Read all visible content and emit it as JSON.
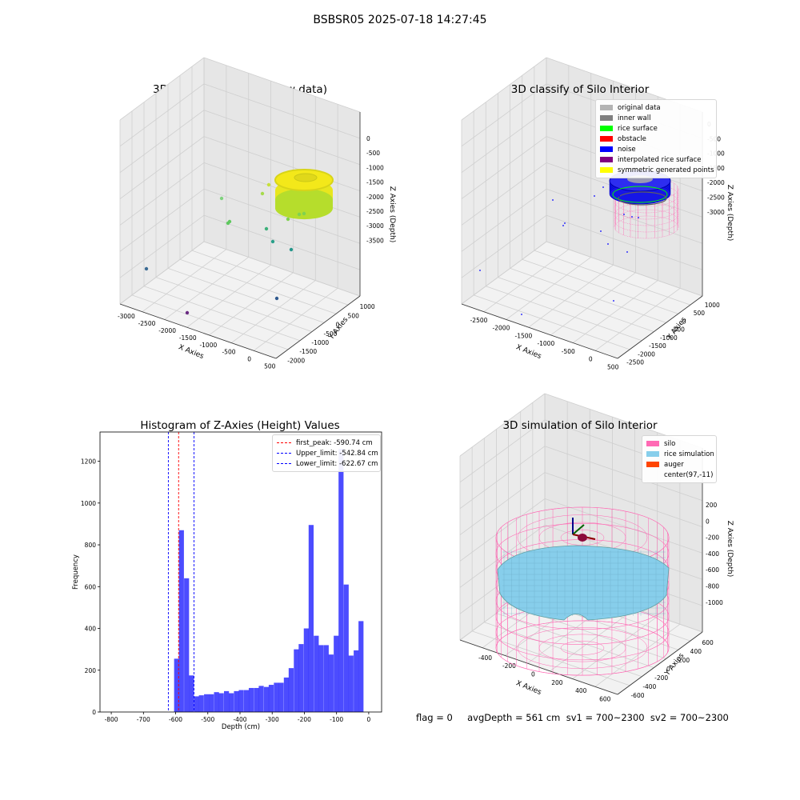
{
  "suptitle": "BSBSR05 2025-07-18 14:27:45",
  "bottom_text": "flag = 0     avgDepth = 561 cm  sv1 = 700~2300  sv2 = 700~2300",
  "chart_data": [
    {
      "type": "scatter3d",
      "title": "3D Plot of Silo Interior(row data)",
      "xlabel": "X Axies",
      "ylabel": "Y Axies",
      "zlabel": "Z Axies (Depth)",
      "xticks": [
        "-3000",
        "-2500",
        "-2000",
        "-1500",
        "-1000",
        "-500",
        "0",
        "500"
      ],
      "yticks": [
        "1000",
        "500",
        "0",
        "-500",
        "-1000",
        "-1500",
        "-2000"
      ],
      "zticks": [
        "0",
        "-500",
        "-1000",
        "-1500",
        "-2000",
        "-2500",
        "-3000",
        "-3500"
      ],
      "grid": true
    },
    {
      "type": "scatter3d",
      "title": "3D classify of Silo Interior",
      "xlabel": "X Axies",
      "ylabel": "Y Axies",
      "zlabel": "Z Axies (Depth)",
      "xticks": [
        "-2500",
        "-2000",
        "-1500",
        "-1000",
        "-500",
        "0",
        "500"
      ],
      "yticks": [
        "1000",
        "500",
        "0",
        "-500",
        "-1000",
        "-1500",
        "-2000",
        "-2500"
      ],
      "zticks": [
        "0",
        "-500",
        "-1000",
        "-1500",
        "-2000",
        "-2500",
        "-3000"
      ],
      "legend_position": "top-right",
      "legend": [
        {
          "label": "original data",
          "color": "#b4b4b4"
        },
        {
          "label": "inner wall",
          "color": "#808080"
        },
        {
          "label": "rice surface",
          "color": "#00ff00"
        },
        {
          "label": "obstacle",
          "color": "#ff0000"
        },
        {
          "label": "noise",
          "color": "#0000ff"
        },
        {
          "label": "interpolated rice surface",
          "color": "#800080"
        },
        {
          "label": "symmetric generated points",
          "color": "#ffff00"
        }
      ],
      "grid": true
    },
    {
      "type": "bar",
      "title": "Histogram of Z-Axies (Height) Values",
      "xlabel": "Depth (cm)",
      "ylabel": "Frequency",
      "xlim": [
        -835,
        40
      ],
      "ylim": [
        0,
        1340
      ],
      "xticks": [
        -800,
        -700,
        -600,
        -500,
        -400,
        -300,
        -200,
        -100,
        0
      ],
      "yticks": [
        0,
        200,
        400,
        600,
        800,
        1000,
        1200
      ],
      "bin_width": 15.5,
      "bar_color": "#0000ff",
      "bins": [
        {
          "x": -597,
          "y": 255
        },
        {
          "x": -582,
          "y": 870
        },
        {
          "x": -566,
          "y": 640
        },
        {
          "x": -551,
          "y": 175
        },
        {
          "x": -535,
          "y": 75
        },
        {
          "x": -520,
          "y": 80
        },
        {
          "x": -504,
          "y": 85
        },
        {
          "x": -489,
          "y": 85
        },
        {
          "x": -473,
          "y": 95
        },
        {
          "x": -458,
          "y": 90
        },
        {
          "x": -442,
          "y": 100
        },
        {
          "x": -427,
          "y": 90
        },
        {
          "x": -411,
          "y": 100
        },
        {
          "x": -396,
          "y": 105
        },
        {
          "x": -380,
          "y": 105
        },
        {
          "x": -365,
          "y": 115
        },
        {
          "x": -349,
          "y": 115
        },
        {
          "x": -334,
          "y": 125
        },
        {
          "x": -318,
          "y": 120
        },
        {
          "x": -303,
          "y": 130
        },
        {
          "x": -287,
          "y": 140
        },
        {
          "x": -272,
          "y": 140
        },
        {
          "x": -256,
          "y": 165
        },
        {
          "x": -241,
          "y": 210
        },
        {
          "x": -225,
          "y": 300
        },
        {
          "x": -210,
          "y": 325
        },
        {
          "x": -194,
          "y": 400
        },
        {
          "x": -179,
          "y": 895
        },
        {
          "x": -163,
          "y": 365
        },
        {
          "x": -148,
          "y": 320
        },
        {
          "x": -132,
          "y": 320
        },
        {
          "x": -117,
          "y": 275
        },
        {
          "x": -101,
          "y": 365
        },
        {
          "x": -86,
          "y": 1260
        },
        {
          "x": -70,
          "y": 610
        },
        {
          "x": -55,
          "y": 270
        },
        {
          "x": -39,
          "y": 295
        },
        {
          "x": -24,
          "y": 435
        }
      ],
      "vlines": [
        {
          "label": "first_peak: -590.74 cm",
          "x": -590.74,
          "color": "#ff0000"
        },
        {
          "label": "Upper_limit: -542.84 cm",
          "x": -542.84,
          "color": "#0000ff"
        },
        {
          "label": "Lower_limit: -622.67 cm",
          "x": -622.67,
          "color": "#0000ff"
        }
      ],
      "legend_position": "top-right"
    },
    {
      "type": "surface3d",
      "title": "3D simulation of Silo Interior",
      "xlabel": "X Axies",
      "ylabel": "Y Axies",
      "zlabel": "Z Axies (Depth)",
      "xticks": [
        "-400",
        "-200",
        "0",
        "200",
        "400",
        "600"
      ],
      "yticks": [
        "600",
        "400",
        "200",
        "0",
        "-200",
        "-400",
        "-600"
      ],
      "zticks": [
        "200",
        "0",
        "-200",
        "-400",
        "-600",
        "-800",
        "-1000"
      ],
      "legend_position": "top-right",
      "legend": [
        {
          "label": "silo",
          "color": "#ff69b4"
        },
        {
          "label": "rice simulation",
          "color": "#87ceeb"
        },
        {
          "label": "auger",
          "color": "#ff4500"
        },
        {
          "label": "center(97,-11)",
          "color": "none"
        }
      ]
    }
  ]
}
